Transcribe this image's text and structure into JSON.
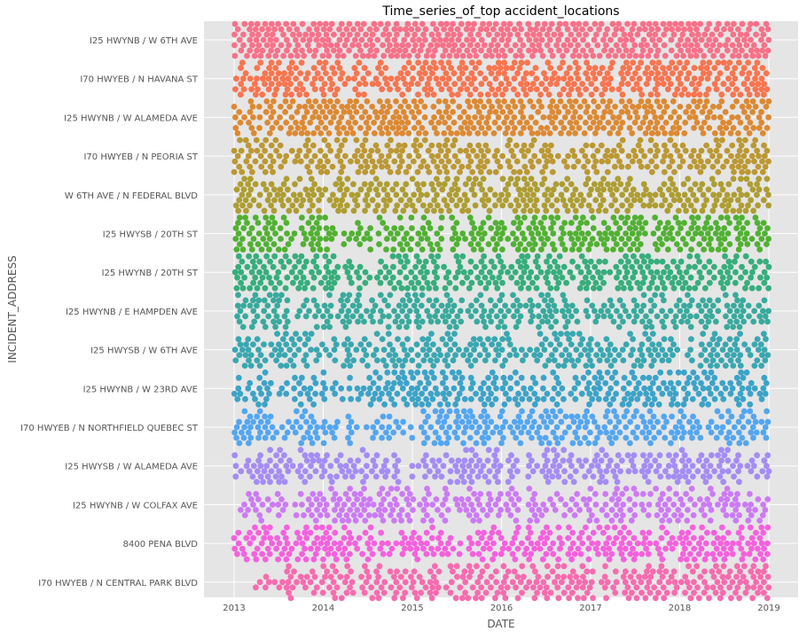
{
  "chart_data": {
    "type": "scatter",
    "subtype": "swarm",
    "title": "Time_series_of_top accident_locations",
    "xlabel": "DATE",
    "ylabel": "INCIDENT_ADDRESS",
    "xlim": [
      2012.6,
      2019.3
    ],
    "x_ticks": [
      "2013",
      "2014",
      "2015",
      "2016",
      "2017",
      "2018",
      "2019"
    ],
    "x_tick_values": [
      2013,
      2014,
      2015,
      2016,
      2017,
      2018,
      2019
    ],
    "grid": true,
    "legend": "none",
    "plot_background": "#E5E5E5",
    "grid_color": "#FFFFFF",
    "categories": [
      "I25 HWYNB / W 6TH AVE",
      "I70 HWYEB / N HAVANA ST",
      "I25 HWYNB / W ALAMEDA AVE",
      "I70 HWYEB / N PEORIA ST",
      "W 6TH AVE / N FEDERAL BLVD",
      "I25 HWYSB / 20TH ST",
      "I25 HWYNB / 20TH ST",
      "I25 HWYNB / E HAMPDEN AVE",
      "I25 HWYSB / W 6TH AVE",
      "I25 HWYNB / W 23RD AVE",
      "I70 HWYEB / N NORTHFIELD QUEBEC ST",
      "I25 HWYSB / W ALAMEDA AVE",
      "I25 HWYNB / W COLFAX AVE",
      "8400 PENA BLVD",
      "I70 HWYEB / N CENTRAL PARK BLVD"
    ],
    "series_colors": [
      "#F77189",
      "#F7754F",
      "#DC8932",
      "#BB9832",
      "#AE9D31",
      "#50B131",
      "#36AE7C",
      "#38AA9D",
      "#39A7B1",
      "#3BA3C8",
      "#53A6F0",
      "#A48CF4",
      "#CC7AF4",
      "#F461DD",
      "#F66BAF"
    ],
    "series": [
      {
        "x_range": [
          2013.0,
          2019.0
        ],
        "count": 560,
        "density": [
          1.0,
          0.9,
          1.0,
          1.0,
          1.0,
          1.0,
          0.8,
          1.0,
          1.0,
          0.8,
          0.9,
          1.0
        ]
      },
      {
        "x_range": [
          2013.0,
          2019.0
        ],
        "count": 390,
        "density": [
          0.9,
          0.8,
          0.7,
          0.6,
          0.8,
          0.7,
          0.9,
          0.7,
          0.6,
          0.6,
          0.8,
          0.9
        ]
      },
      {
        "x_range": [
          2013.0,
          2019.0
        ],
        "count": 420,
        "density": [
          0.4,
          0.7,
          0.9,
          1.0,
          0.8,
          0.7,
          0.8,
          0.9,
          0.9,
          0.8,
          0.6,
          0.7
        ]
      },
      {
        "x_range": [
          2013.0,
          2019.0
        ],
        "count": 340,
        "density": [
          0.8,
          0.6,
          0.7,
          0.9,
          0.9,
          0.8,
          0.6,
          0.5,
          0.8,
          0.6,
          0.7,
          0.8
        ]
      },
      {
        "x_range": [
          2013.0,
          2019.0
        ],
        "count": 370,
        "density": [
          0.8,
          0.7,
          0.6,
          0.7,
          0.8,
          0.7,
          0.9,
          0.8,
          0.7,
          0.6,
          0.8,
          0.9
        ]
      },
      {
        "x_range": [
          2013.0,
          2019.0
        ],
        "count": 360,
        "density": [
          1.0,
          0.9,
          0.5,
          0.6,
          0.6,
          0.6,
          0.8,
          0.7,
          0.7,
          0.8,
          0.8,
          0.7
        ]
      },
      {
        "x_range": [
          2013.0,
          2019.0
        ],
        "count": 360,
        "density": [
          0.9,
          0.8,
          0.6,
          0.7,
          0.7,
          0.8,
          0.7,
          0.6,
          0.8,
          0.9,
          0.6,
          0.8
        ]
      },
      {
        "x_range": [
          2013.0,
          2019.0
        ],
        "count": 330,
        "density": [
          0.8,
          0.7,
          0.6,
          0.6,
          0.7,
          0.8,
          0.8,
          0.6,
          0.8,
          0.8,
          0.7,
          0.6
        ]
      },
      {
        "x_range": [
          2013.0,
          2019.0
        ],
        "count": 320,
        "density": [
          0.6,
          0.7,
          0.7,
          0.8,
          0.6,
          0.6,
          0.7,
          0.8,
          0.7,
          0.6,
          0.7,
          0.7
        ]
      },
      {
        "x_range": [
          2013.0,
          2019.0
        ],
        "count": 320,
        "density": [
          0.5,
          0.6,
          0.4,
          0.8,
          0.7,
          0.7,
          0.9,
          0.5,
          0.8,
          0.7,
          0.7,
          0.7
        ]
      },
      {
        "x_range": [
          2013.0,
          2019.0
        ],
        "count": 320,
        "density": [
          0.7,
          0.7,
          0.6,
          0.6,
          0.6,
          0.9,
          0.7,
          0.7,
          0.8,
          0.8,
          0.6,
          0.7
        ]
      },
      {
        "x_range": [
          2013.0,
          2019.0
        ],
        "count": 300,
        "density": [
          0.6,
          0.8,
          0.5,
          0.6,
          0.6,
          0.7,
          0.6,
          0.7,
          0.7,
          0.8,
          0.7,
          0.6
        ]
      },
      {
        "x_range": [
          2013.0,
          2019.0
        ],
        "count": 300,
        "density": [
          0.5,
          0.5,
          0.8,
          0.9,
          0.7,
          0.6,
          0.7,
          0.7,
          0.6,
          0.6,
          0.6,
          0.7
        ]
      },
      {
        "x_range": [
          2013.0,
          2019.0
        ],
        "count": 340,
        "density": [
          0.8,
          0.8,
          0.8,
          0.6,
          0.7,
          0.7,
          0.7,
          0.7,
          0.8,
          0.5,
          0.8,
          0.8
        ]
      },
      {
        "x_range": [
          2013.1,
          2019.0
        ],
        "count": 320,
        "density": [
          0.3,
          0.6,
          0.6,
          0.6,
          0.7,
          0.9,
          0.8,
          0.7,
          0.6,
          0.8,
          0.7,
          0.7
        ]
      }
    ]
  }
}
